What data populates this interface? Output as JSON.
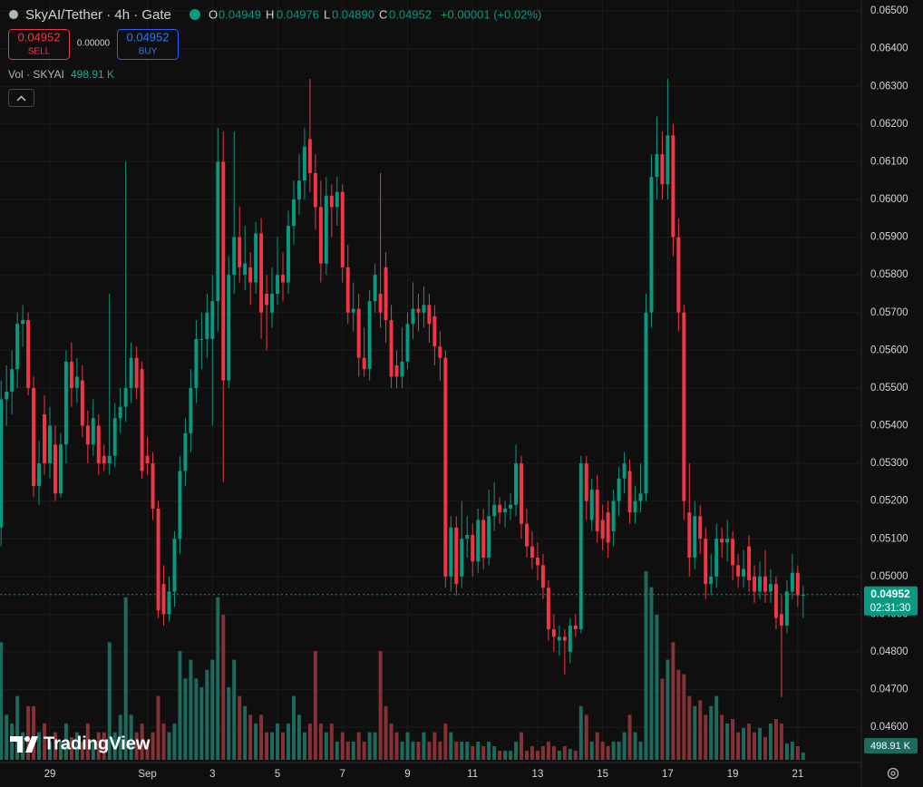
{
  "header": {
    "title": "SkyAI/Tether · 4h · Gate",
    "ohlc": [
      {
        "label": "O",
        "value": "0.04949"
      },
      {
        "label": "H",
        "value": "0.04976"
      },
      {
        "label": "L",
        "value": "0.04890"
      },
      {
        "label": "C",
        "value": "0.04952"
      }
    ],
    "change": "+0.00001 (+0.02%)"
  },
  "trade": {
    "sell_price": "0.04952",
    "sell": "SELL",
    "spread": "0.00000",
    "buy_price": "0.04952",
    "buy": "BUY"
  },
  "volume_legend": {
    "label": "Vol · SKYAI",
    "value": "498.91 K"
  },
  "logo": "TradingView",
  "chart_data": {
    "type": "candlestick",
    "up_color": "#089981",
    "down_color": "#f23645",
    "volume_up_color": "#1d6a5f",
    "volume_down_color": "#863136",
    "grid": true,
    "xlim": [
      -0.2,
      158.4
    ],
    "ylim": [
      0.04509,
      0.06529
    ],
    "xticks": [
      {
        "value": 9,
        "label": "29"
      },
      {
        "value": 27,
        "label": "Sep"
      },
      {
        "value": 39,
        "label": "3"
      },
      {
        "value": 51,
        "label": "5"
      },
      {
        "value": 63,
        "label": "7"
      },
      {
        "value": 75,
        "label": "9"
      },
      {
        "value": 87,
        "label": "11"
      },
      {
        "value": 99,
        "label": "13"
      },
      {
        "value": 111,
        "label": "15"
      },
      {
        "value": 123,
        "label": "17"
      },
      {
        "value": 135,
        "label": "19"
      },
      {
        "value": 147,
        "label": "21"
      }
    ],
    "yticks": [
      {
        "value": 0.065,
        "label": "0.06500"
      },
      {
        "value": 0.064,
        "label": "0.06400"
      },
      {
        "value": 0.063,
        "label": "0.06300"
      },
      {
        "value": 0.062,
        "label": "0.06200"
      },
      {
        "value": 0.061,
        "label": "0.06100"
      },
      {
        "value": 0.06,
        "label": "0.06000"
      },
      {
        "value": 0.059,
        "label": "0.05900"
      },
      {
        "value": 0.058,
        "label": "0.05800"
      },
      {
        "value": 0.057,
        "label": "0.05700"
      },
      {
        "value": 0.056,
        "label": "0.05600"
      },
      {
        "value": 0.055,
        "label": "0.05500"
      },
      {
        "value": 0.054,
        "label": "0.05400"
      },
      {
        "value": 0.053,
        "label": "0.05300"
      },
      {
        "value": 0.052,
        "label": "0.05200"
      },
      {
        "value": 0.051,
        "label": "0.05100"
      },
      {
        "value": 0.05,
        "label": "0.05000"
      },
      {
        "value": 0.049,
        "label": "0.04900"
      },
      {
        "value": 0.048,
        "label": "0.04800"
      },
      {
        "value": 0.047,
        "label": "0.04700"
      },
      {
        "value": 0.046,
        "label": "0.04600"
      }
    ],
    "last_price": {
      "value": 0.04952,
      "label": "0.04952"
    },
    "countdown": "02:31:30",
    "last_volume_label": "498.91 K",
    "candles": [
      [
        0.0513,
        0.0552,
        0.0508,
        0.0547
      ],
      [
        0.0547,
        0.0556,
        0.054,
        0.0549
      ],
      [
        0.0549,
        0.056,
        0.0543,
        0.0555
      ],
      [
        0.0555,
        0.057,
        0.055,
        0.0567
      ],
      [
        0.0567,
        0.0572,
        0.0561,
        0.0568
      ],
      [
        0.0568,
        0.057,
        0.0548,
        0.055
      ],
      [
        0.055,
        0.0553,
        0.0521,
        0.0524
      ],
      [
        0.0524,
        0.0536,
        0.0519,
        0.053
      ],
      [
        0.0543,
        0.0548,
        0.0527,
        0.053
      ],
      [
        0.053,
        0.0545,
        0.0526,
        0.054
      ],
      [
        0.0535,
        0.054,
        0.052,
        0.0522
      ],
      [
        0.0522,
        0.0538,
        0.0521,
        0.0535
      ],
      [
        0.0535,
        0.056,
        0.053,
        0.0557
      ],
      [
        0.0557,
        0.0562,
        0.0545,
        0.055
      ],
      [
        0.055,
        0.0558,
        0.0546,
        0.0553
      ],
      [
        0.0552,
        0.0556,
        0.0537,
        0.054
      ],
      [
        0.054,
        0.0544,
        0.053,
        0.0535
      ],
      [
        0.0535,
        0.0547,
        0.0532,
        0.0542
      ],
      [
        0.054,
        0.0543,
        0.0527,
        0.053
      ],
      [
        0.0532,
        0.0535,
        0.0528,
        0.053
      ],
      [
        0.053,
        0.0575,
        0.0527,
        0.0532
      ],
      [
        0.0532,
        0.0546,
        0.0529,
        0.0542
      ],
      [
        0.0542,
        0.055,
        0.0538,
        0.0545
      ],
      [
        0.0545,
        0.061,
        0.0541,
        0.055
      ],
      [
        0.055,
        0.0562,
        0.0546,
        0.0558
      ],
      [
        0.0558,
        0.0561,
        0.0547,
        0.055
      ],
      [
        0.0555,
        0.0557,
        0.0526,
        0.0528
      ],
      [
        0.0532,
        0.0537,
        0.0527,
        0.053
      ],
      [
        0.053,
        0.0533,
        0.0515,
        0.0518
      ],
      [
        0.0518,
        0.052,
        0.0489,
        0.0491
      ],
      [
        0.0498,
        0.0503,
        0.0487,
        0.049
      ],
      [
        0.049,
        0.05,
        0.0488,
        0.0496
      ],
      [
        0.0496,
        0.0512,
        0.0492,
        0.051
      ],
      [
        0.051,
        0.0532,
        0.0506,
        0.0528
      ],
      [
        0.0528,
        0.0542,
        0.0524,
        0.0538
      ],
      [
        0.0538,
        0.0555,
        0.0533,
        0.055
      ],
      [
        0.055,
        0.0568,
        0.0546,
        0.0563
      ],
      [
        0.0563,
        0.057,
        0.0555,
        0.0563
      ],
      [
        0.0563,
        0.0575,
        0.0558,
        0.057
      ],
      [
        0.0563,
        0.058,
        0.054,
        0.0573
      ],
      [
        0.0573,
        0.0619,
        0.0565,
        0.061
      ],
      [
        0.061,
        0.0618,
        0.0525,
        0.0552
      ],
      [
        0.0552,
        0.0585,
        0.055,
        0.058
      ],
      [
        0.058,
        0.0618,
        0.0575,
        0.059
      ],
      [
        0.059,
        0.0598,
        0.0578,
        0.0582
      ],
      [
        0.058,
        0.0593,
        0.0576,
        0.0583
      ],
      [
        0.0582,
        0.0586,
        0.0572,
        0.0578
      ],
      [
        0.0578,
        0.0594,
        0.0575,
        0.0591
      ],
      [
        0.0591,
        0.0595,
        0.0563,
        0.057
      ],
      [
        0.0575,
        0.058,
        0.056,
        0.0572
      ],
      [
        0.057,
        0.0582,
        0.0566,
        0.0575
      ],
      [
        0.0575,
        0.059,
        0.0572,
        0.058
      ],
      [
        0.058,
        0.0586,
        0.0573,
        0.0578
      ],
      [
        0.0578,
        0.0597,
        0.0575,
        0.0593
      ],
      [
        0.0593,
        0.0605,
        0.0588,
        0.06
      ],
      [
        0.06,
        0.0612,
        0.0596,
        0.0605
      ],
      [
        0.0605,
        0.0619,
        0.06,
        0.0614
      ],
      [
        0.0616,
        0.0632,
        0.0602,
        0.0607
      ],
      [
        0.0607,
        0.0612,
        0.0592,
        0.0598
      ],
      [
        0.0598,
        0.0605,
        0.0578,
        0.0583
      ],
      [
        0.0583,
        0.0606,
        0.058,
        0.0601
      ],
      [
        0.0601,
        0.0604,
        0.059,
        0.0598
      ],
      [
        0.0598,
        0.0606,
        0.0593,
        0.0602
      ],
      [
        0.0602,
        0.0604,
        0.0578,
        0.0582
      ],
      [
        0.0582,
        0.0588,
        0.0567,
        0.057
      ],
      [
        0.057,
        0.0578,
        0.0565,
        0.0571
      ],
      [
        0.0571,
        0.0575,
        0.0553,
        0.0558
      ],
      [
        0.0558,
        0.0566,
        0.0553,
        0.0555
      ],
      [
        0.0555,
        0.0576,
        0.0552,
        0.0573
      ],
      [
        0.0573,
        0.0583,
        0.057,
        0.058
      ],
      [
        0.0575,
        0.0607,
        0.0566,
        0.057
      ],
      [
        0.0582,
        0.0586,
        0.0562,
        0.0568
      ],
      [
        0.0568,
        0.0572,
        0.055,
        0.0553
      ],
      [
        0.0556,
        0.056,
        0.055,
        0.0553
      ],
      [
        0.0553,
        0.0566,
        0.055,
        0.0557
      ],
      [
        0.0557,
        0.057,
        0.0555,
        0.0567
      ],
      [
        0.0567,
        0.0578,
        0.0563,
        0.0571
      ],
      [
        0.0571,
        0.0575,
        0.0565,
        0.057
      ],
      [
        0.057,
        0.0577,
        0.0566,
        0.0572
      ],
      [
        0.0572,
        0.0575,
        0.0562,
        0.0567
      ],
      [
        0.0569,
        0.0572,
        0.0556,
        0.0561
      ],
      [
        0.0561,
        0.0565,
        0.0552,
        0.0558
      ],
      [
        0.0558,
        0.056,
        0.0497,
        0.05
      ],
      [
        0.05,
        0.0516,
        0.0496,
        0.0513
      ],
      [
        0.0513,
        0.0516,
        0.0495,
        0.0498
      ],
      [
        0.05,
        0.052,
        0.0497,
        0.051
      ],
      [
        0.051,
        0.0516,
        0.0505,
        0.0511
      ],
      [
        0.0511,
        0.0514,
        0.05,
        0.0504
      ],
      [
        0.0504,
        0.0518,
        0.0501,
        0.0515
      ],
      [
        0.0515,
        0.0518,
        0.0502,
        0.0505
      ],
      [
        0.0505,
        0.0523,
        0.0503,
        0.0516
      ],
      [
        0.0516,
        0.0525,
        0.0512,
        0.0519
      ],
      [
        0.0519,
        0.0521,
        0.0514,
        0.0517
      ],
      [
        0.0517,
        0.052,
        0.0513,
        0.0518
      ],
      [
        0.0518,
        0.0522,
        0.0515,
        0.0519
      ],
      [
        0.0519,
        0.0535,
        0.0516,
        0.053
      ],
      [
        0.053,
        0.0532,
        0.051,
        0.0514
      ],
      [
        0.0514,
        0.0518,
        0.0505,
        0.0508
      ],
      [
        0.0508,
        0.0512,
        0.0502,
        0.0505
      ],
      [
        0.0505,
        0.0509,
        0.0499,
        0.0503
      ],
      [
        0.0503,
        0.0506,
        0.0494,
        0.0497
      ],
      [
        0.0497,
        0.0499,
        0.0483,
        0.0486
      ],
      [
        0.0486,
        0.049,
        0.048,
        0.0484
      ],
      [
        0.0483,
        0.0487,
        0.0479,
        0.0484
      ],
      [
        0.0484,
        0.0486,
        0.0474,
        0.0483
      ],
      [
        0.048,
        0.0489,
        0.0477,
        0.0487
      ],
      [
        0.0487,
        0.049,
        0.0484,
        0.0486
      ],
      [
        0.0486,
        0.0532,
        0.0485,
        0.053
      ],
      [
        0.053,
        0.0532,
        0.0515,
        0.052
      ],
      [
        0.0515,
        0.0526,
        0.0512,
        0.0523
      ],
      [
        0.0523,
        0.0527,
        0.0509,
        0.0512
      ],
      [
        0.0515,
        0.0519,
        0.0507,
        0.051
      ],
      [
        0.0517,
        0.052,
        0.0505,
        0.0509
      ],
      [
        0.0512,
        0.0523,
        0.0508,
        0.052
      ],
      [
        0.052,
        0.0529,
        0.0516,
        0.0526
      ],
      [
        0.0526,
        0.0533,
        0.0522,
        0.053
      ],
      [
        0.0528,
        0.0531,
        0.0514,
        0.0517
      ],
      [
        0.0517,
        0.0524,
        0.0514,
        0.052
      ],
      [
        0.052,
        0.053,
        0.0517,
        0.0522
      ],
      [
        0.0522,
        0.0575,
        0.052,
        0.057
      ],
      [
        0.057,
        0.0612,
        0.0566,
        0.0606
      ],
      [
        0.0606,
        0.0622,
        0.06,
        0.0612
      ],
      [
        0.0612,
        0.0618,
        0.06,
        0.0604
      ],
      [
        0.0604,
        0.0632,
        0.06,
        0.0617
      ],
      [
        0.0617,
        0.062,
        0.0585,
        0.059
      ],
      [
        0.059,
        0.0595,
        0.0565,
        0.057
      ],
      [
        0.057,
        0.0572,
        0.0515,
        0.052
      ],
      [
        0.0517,
        0.053,
        0.05,
        0.0505
      ],
      [
        0.0505,
        0.052,
        0.0502,
        0.0516
      ],
      [
        0.0516,
        0.0519,
        0.0506,
        0.051
      ],
      [
        0.051,
        0.0513,
        0.0494,
        0.0498
      ],
      [
        0.0498,
        0.0506,
        0.0495,
        0.05
      ],
      [
        0.05,
        0.0514,
        0.0497,
        0.051
      ],
      [
        0.051,
        0.0513,
        0.0505,
        0.0509
      ],
      [
        0.0509,
        0.0515,
        0.0504,
        0.051
      ],
      [
        0.051,
        0.0512,
        0.0499,
        0.0503
      ],
      [
        0.0503,
        0.0506,
        0.0497,
        0.05
      ],
      [
        0.05,
        0.0507,
        0.0497,
        0.0502
      ],
      [
        0.0508,
        0.0511,
        0.0496,
        0.0499
      ],
      [
        0.05,
        0.0503,
        0.0493,
        0.0496
      ],
      [
        0.0496,
        0.0504,
        0.0494,
        0.05
      ],
      [
        0.05,
        0.0507,
        0.0493,
        0.0496
      ],
      [
        0.0496,
        0.0502,
        0.0493,
        0.0498
      ],
      [
        0.0498,
        0.05,
        0.0486,
        0.0489
      ],
      [
        0.049,
        0.0495,
        0.0468,
        0.0487
      ],
      [
        0.0487,
        0.0499,
        0.0485,
        0.0496
      ],
      [
        0.0496,
        0.0506,
        0.0494,
        0.0501
      ],
      [
        0.0501,
        0.0503,
        0.0492,
        0.0495
      ],
      [
        0.04949,
        0.04976,
        0.0489,
        0.04952
      ]
    ],
    "volume": [
      8100,
      3100,
      2500,
      4400,
      1900,
      3700,
      3700,
      1900,
      2500,
      1250,
      1900,
      1250,
      2500,
      1560,
      1900,
      1250,
      2500,
      1250,
      1900,
      1900,
      8100,
      1900,
      3100,
      11200,
      3100,
      1900,
      2500,
      1250,
      1900,
      4400,
      2500,
      1900,
      2500,
      7500,
      5600,
      6900,
      5600,
      5000,
      6200,
      6900,
      11200,
      10000,
      5000,
      6900,
      4400,
      3700,
      3100,
      2500,
      3100,
      1900,
      1900,
      2500,
      1900,
      2500,
      4400,
      3100,
      1900,
      2500,
      7500,
      2500,
      1900,
      2500,
      1250,
      1900,
      1250,
      1250,
      1900,
      1250,
      1900,
      1900,
      7500,
      3700,
      2500,
      1900,
      1250,
      1900,
      1250,
      1250,
      1900,
      1250,
      1900,
      1250,
      2500,
      1900,
      1250,
      1250,
      1250,
      940,
      1250,
      940,
      1250,
      940,
      620,
      620,
      620,
      1250,
      1900,
      620,
      940,
      620,
      940,
      1250,
      940,
      620,
      940,
      750,
      620,
      3700,
      3100,
      1250,
      1900,
      1250,
      940,
      1250,
      1250,
      1900,
      3100,
      1900,
      1250,
      13000,
      11900,
      10000,
      5600,
      6900,
      8100,
      6200,
      5900,
      4400,
      3700,
      4100,
      3100,
      3700,
      4400,
      3100,
      2500,
      2800,
      1900,
      2200,
      2500,
      1900,
      2200,
      1560,
      2500,
      2800,
      2500,
      1120,
      1250,
      940,
      498.91
    ]
  }
}
